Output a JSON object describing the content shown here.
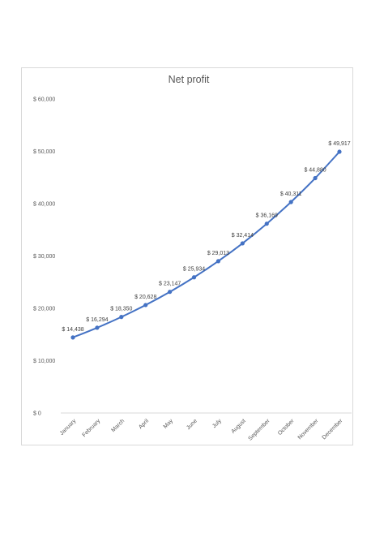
{
  "chart_data": {
    "type": "line",
    "title": "Net profit",
    "xlabel": "",
    "ylabel": "",
    "categories": [
      "January",
      "February",
      "March",
      "April",
      "May",
      "June",
      "July",
      "August",
      "September",
      "October",
      "November",
      "December"
    ],
    "series": [
      {
        "values": [
          14438,
          16294,
          18350,
          20628,
          23147,
          25934,
          29013,
          32414,
          36169,
          40311,
          44880,
          49917
        ]
      }
    ],
    "data_labels": [
      "$ 14,438",
      "$ 16,294",
      "$ 18,350",
      "$ 20,628",
      "$ 23,147",
      "$ 25,934",
      "$ 29,013",
      "$ 32,414",
      "$ 36,169",
      "$ 40,311",
      "$ 44,880",
      "$ 49,917"
    ],
    "ylim": [
      0,
      60000
    ],
    "y_ticks": [
      0,
      10000,
      20000,
      30000,
      40000,
      50000,
      60000
    ],
    "y_tick_labels": [
      "$ 0",
      "$ 10,000",
      "$ 20,000",
      "$ 30,000",
      "$ 40,000",
      "$ 50,000",
      "$ 60,000"
    ],
    "grid": false,
    "legend": "none",
    "line_color": "#4472c4",
    "axis_color": "#d9d9d9"
  }
}
